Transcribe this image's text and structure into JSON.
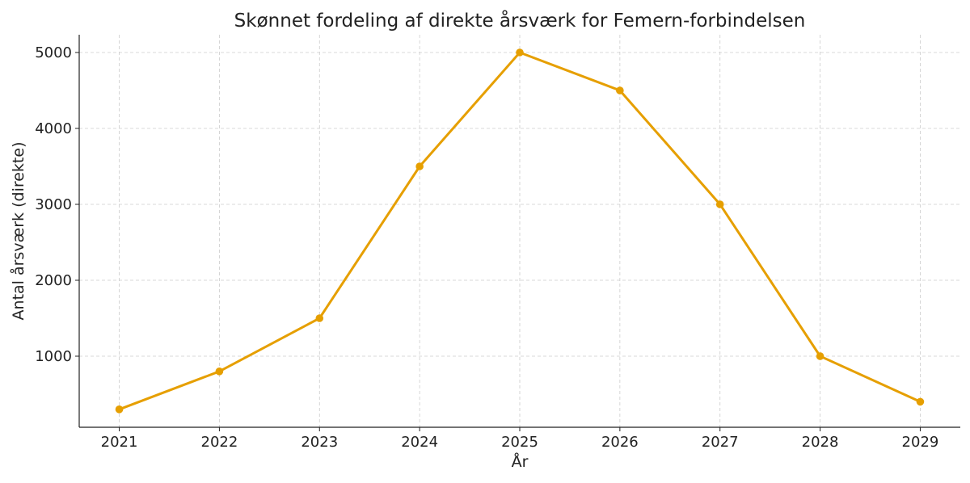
{
  "chart_data": {
    "type": "line",
    "title": "Skønnet fordeling af direkte årsværk for Femern-forbindelsen",
    "xlabel": "År",
    "ylabel": "Antal årsværk (direkte)",
    "x": [
      2021,
      2022,
      2023,
      2024,
      2025,
      2026,
      2027,
      2028,
      2029
    ],
    "series": [
      {
        "values": [
          300,
          800,
          1500,
          3500,
          5000,
          4500,
          3000,
          1000,
          400
        ],
        "color": "#E69F00",
        "marker": "circle"
      }
    ],
    "xlim": [
      2020.6,
      2029.4
    ],
    "ylim": [
      64,
      5234
    ],
    "xticks": [
      "2021",
      "2022",
      "2023",
      "2024",
      "2025",
      "2026",
      "2027",
      "2028",
      "2029"
    ],
    "yticks": [
      1000,
      2000,
      3000,
      4000,
      5000
    ],
    "ytick_labels": [
      "1000",
      "2000",
      "3000",
      "4000",
      "5000"
    ],
    "grid": true,
    "grid_style": "dashed",
    "legend": "none"
  }
}
